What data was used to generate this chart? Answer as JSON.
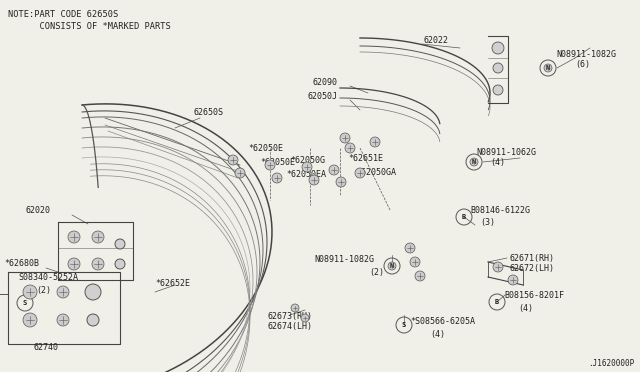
{
  "bg_color": "#f0f0e8",
  "line_color": "#555555",
  "text_color": "#222222",
  "note_line1": "NOTE:PART CODE 62650S",
  "note_line2": "      CONSISTS OF *MARKED PARTS",
  "diagram_id": ".J1620000P",
  "fs": 6.0,
  "fs_note": 6.2
}
